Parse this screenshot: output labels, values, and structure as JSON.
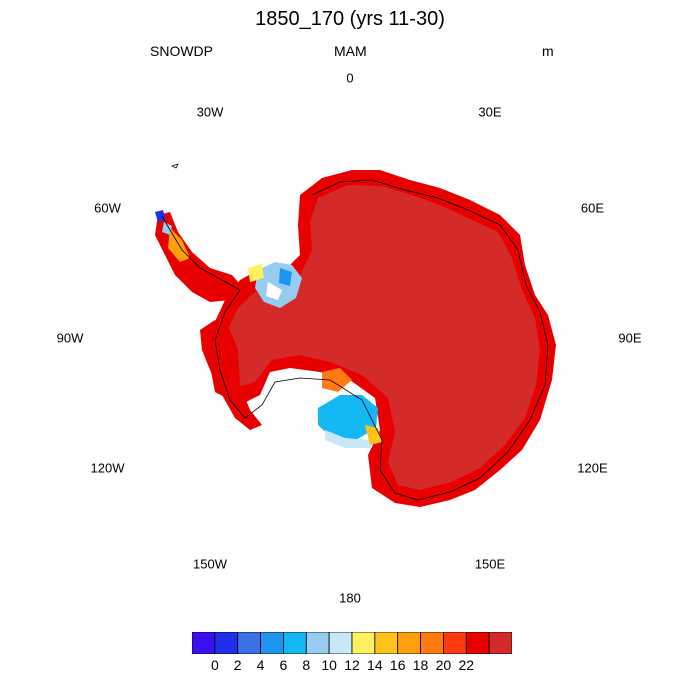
{
  "title": "1850_170 (yrs 11-30)",
  "variable": "SNOWDP",
  "season": "MAM",
  "units": "m",
  "longitude_labels": [
    {
      "label": "0",
      "lon": 0
    },
    {
      "label": "30E",
      "lon": 30
    },
    {
      "label": "60E",
      "lon": 60
    },
    {
      "label": "90E",
      "lon": 90
    },
    {
      "label": "120E",
      "lon": 120
    },
    {
      "label": "150E",
      "lon": 150
    },
    {
      "label": "180",
      "lon": 180
    },
    {
      "label": "150W",
      "lon": -150
    },
    {
      "label": "120W",
      "lon": -120
    },
    {
      "label": "90W",
      "lon": -90
    },
    {
      "label": "60W",
      "lon": -60
    },
    {
      "label": "30W",
      "lon": -30
    }
  ],
  "colorbar": {
    "colors": [
      "#3b10f0",
      "#2030e8",
      "#3a72e6",
      "#1e96f0",
      "#14b8f5",
      "#96ccf0",
      "#c8e8f8",
      "#fff060",
      "#ffc21a",
      "#ffa00a",
      "#ff7a10",
      "#ff3a10",
      "#e80000",
      "#d42a2a"
    ],
    "labels": [
      "0",
      "2",
      "4",
      "6",
      "8",
      "10",
      "12",
      "14",
      "16",
      "18",
      "20",
      "22"
    ]
  },
  "map": {
    "dominant_color": "#d42a2a",
    "coastal_color": "#e80000"
  }
}
